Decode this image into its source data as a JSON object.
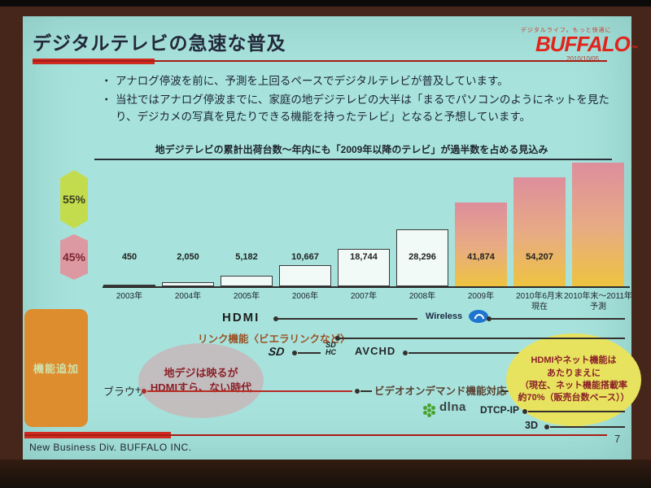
{
  "colors": {
    "slide_background": "#a7e3dc",
    "accent_red": "#cf2b20",
    "brand_red": "#e0241c",
    "bar_plain": "#f2faf8",
    "bar_gradient_top": "#dd8e9c",
    "bar_gradient_bottom": "#eec340",
    "badge_green": "#c3dc4e",
    "badge_pink": "#dc99a2",
    "feature_box_orange": "#dd8c2e",
    "bubble_gray": "#c4bbbc",
    "bubble_yellow": "#e7e35e",
    "bubble_text_red": "#8b1f28",
    "browser_line_red": "#b52c24"
  },
  "header": {
    "title": "デジタルテレビの急速な普及",
    "logo_tagline": "デジタルライフ。もっと快適に",
    "brand": "BUFFALO",
    "brand_mark": "™",
    "date": "2010/10/05"
  },
  "bullets": [
    "アナログ停波を前に、予測を上回るペースでデジタルテレビが普及しています。",
    "当社ではアナログ停波までに、家庭の地デジテレビの大半は「まるでパソコンのようにネットを見たり、デジカメの写真を見たりできる機能を持ったテレビ」となると予想しています。"
  ],
  "chart_data": {
    "type": "bar",
    "title": "地デジテレビの累計出荷台数～年内にも「2009年以降のテレビ」が過半数を占める見込み",
    "categories": [
      "2003年",
      "2004年",
      "2005年",
      "2006年",
      "2007年",
      "2008年",
      "2009年",
      "2010年6月末現在",
      "2010年末～2011年予測"
    ],
    "category_lines": [
      [
        "2003年"
      ],
      [
        "2004年"
      ],
      [
        "2005年"
      ],
      [
        "2006年"
      ],
      [
        "2007年"
      ],
      [
        "2008年"
      ],
      [
        "2009年"
      ],
      [
        "2010年6月末",
        "現在"
      ],
      [
        "2010年末～2011年",
        "予測"
      ]
    ],
    "values": [
      450,
      2050,
      5182,
      10667,
      18744,
      28296,
      41874,
      54207,
      null
    ],
    "value_labels": [
      "450",
      "2,050",
      "5,182",
      "10,667",
      "18,744",
      "28,296",
      "41,874",
      "54,207",
      ""
    ],
    "styles": [
      "plain",
      "plain",
      "plain",
      "plain",
      "plain",
      "plain",
      "gradient",
      "gradient",
      "gradient"
    ],
    "grid": false,
    "legend": false,
    "share_badges": {
      "top": "55%",
      "bottom": "45%"
    }
  },
  "timeline": {
    "side_box": "機能追加",
    "hdmi": "HDMI",
    "wireless": "Wireless",
    "link": "リンク機能〈ビエラリンクなど〉",
    "sd": "SD",
    "sdhc_top": "SD",
    "sdhc_bottom": "HC",
    "avchd": "AVCHD",
    "browser": "ブラウザ",
    "vod": "ビデオオンデマンド機能対応",
    "dlna": "dlna",
    "dtcp": "DTCP-IP",
    "threed": "3D",
    "bubble_left": [
      "地デジは映るが",
      "HDMIすら、ない時代"
    ],
    "bubble_right": [
      "HDMIやネット機能は",
      "あたりまえに",
      "（現在、ネット機能搭載率",
      "約70%（販売台数ベース））"
    ]
  },
  "footer": {
    "text": "New Business Div.  BUFFALO INC.",
    "page": "7"
  }
}
